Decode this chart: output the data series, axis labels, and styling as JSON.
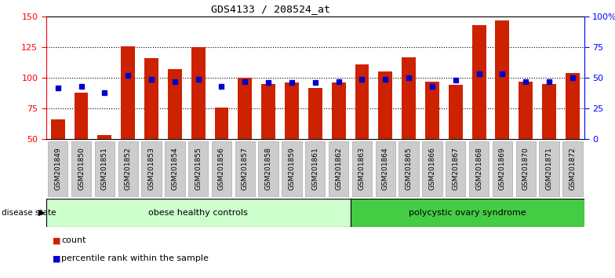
{
  "title": "GDS4133 / 208524_at",
  "samples": [
    "GSM201849",
    "GSM201850",
    "GSM201851",
    "GSM201852",
    "GSM201853",
    "GSM201854",
    "GSM201855",
    "GSM201856",
    "GSM201857",
    "GSM201858",
    "GSM201859",
    "GSM201861",
    "GSM201862",
    "GSM201863",
    "GSM201864",
    "GSM201865",
    "GSM201866",
    "GSM201867",
    "GSM201868",
    "GSM201869",
    "GSM201870",
    "GSM201871",
    "GSM201872"
  ],
  "counts": [
    66,
    88,
    53,
    126,
    116,
    107,
    125,
    76,
    100,
    95,
    96,
    92,
    96,
    111,
    105,
    117,
    97,
    94,
    143,
    147,
    97,
    95,
    104
  ],
  "percentile_ranks": [
    42,
    43,
    38,
    52,
    49,
    47,
    49,
    43,
    47,
    46,
    46,
    46,
    47,
    49,
    49,
    50,
    43,
    48,
    53,
    53,
    47,
    47,
    50
  ],
  "group1_label": "obese healthy controls",
  "group1_count": 13,
  "group2_label": "polycystic ovary syndrome",
  "group2_count": 10,
  "ylim_left": [
    50,
    150
  ],
  "ylim_right": [
    0,
    100
  ],
  "yticks_left": [
    50,
    75,
    100,
    125,
    150
  ],
  "yticks_right": [
    0,
    25,
    50,
    75,
    100
  ],
  "bar_color": "#cc2200",
  "dot_color": "#0000cc",
  "group1_bg": "#ccffcc",
  "group2_bg": "#44cc44",
  "xtick_bg": "#cccccc",
  "legend_count_label": "count",
  "legend_pct_label": "percentile rank within the sample",
  "baseline": 50
}
